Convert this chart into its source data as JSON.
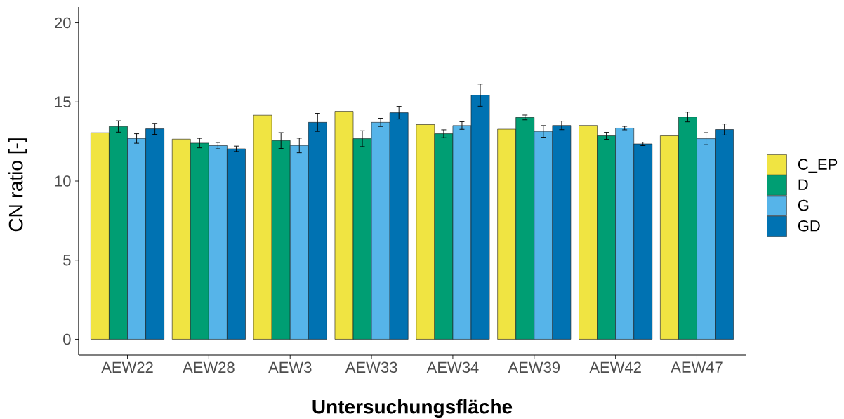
{
  "chart_data": {
    "type": "bar",
    "xlabel": "Untersuchungsfläche",
    "ylabel": "CN ratio [-]",
    "categories": [
      "AEW22",
      "AEW28",
      "AEW3",
      "AEW33",
      "AEW34",
      "AEW39",
      "AEW42",
      "AEW47"
    ],
    "series": [
      {
        "name": "C_EP",
        "color": "#f0e442",
        "values": [
          13.05,
          12.65,
          14.16,
          14.41,
          13.57,
          13.28,
          13.52,
          12.86
        ]
      },
      {
        "name": "D",
        "color": "#009e73",
        "values": [
          13.45,
          12.4,
          12.56,
          12.68,
          12.99,
          14.02,
          12.86,
          14.05
        ],
        "errors": [
          0.36,
          0.3,
          0.5,
          0.5,
          0.25,
          0.15,
          0.22,
          0.31
        ]
      },
      {
        "name": "G",
        "color": "#56b4e9",
        "values": [
          12.69,
          12.24,
          12.25,
          13.71,
          13.51,
          13.14,
          13.35,
          12.68
        ],
        "errors": [
          0.3,
          0.2,
          0.46,
          0.26,
          0.24,
          0.37,
          0.11,
          0.38
        ]
      },
      {
        "name": "GD",
        "color": "#0072b2",
        "values": [
          13.3,
          12.04,
          13.71,
          14.32,
          15.43,
          13.52,
          12.35,
          13.26
        ],
        "errors": [
          0.35,
          0.17,
          0.57,
          0.4,
          0.7,
          0.27,
          0.11,
          0.35
        ]
      }
    ],
    "ylim": [
      -1,
      21
    ],
    "yticks": [
      0,
      5,
      10,
      15,
      20
    ],
    "legend": "right",
    "grid": false
  }
}
